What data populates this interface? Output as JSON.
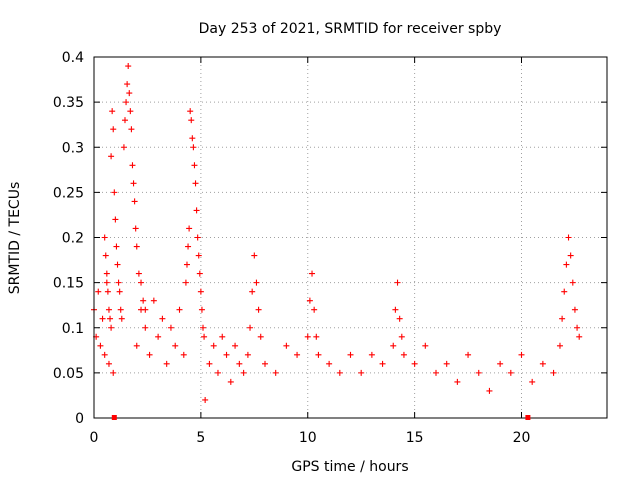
{
  "chart_data": {
    "type": "scatter",
    "title": "Day 253 of 2021, SRMTID for receiver spby",
    "xlabel": "GPS time / hours",
    "ylabel": "SRMTID / TECUs",
    "xlim": [
      0,
      24
    ],
    "ylim": [
      0,
      0.4
    ],
    "xticks": [
      0,
      5,
      10,
      15,
      20
    ],
    "yticks": [
      0,
      0.05,
      0.1,
      0.15,
      0.2,
      0.25,
      0.3,
      0.35,
      0.4
    ],
    "xtick_labels": [
      "0",
      "5",
      "10",
      "15",
      "20"
    ],
    "ytick_labels": [
      "0",
      "0.05",
      "0.1",
      "0.15",
      "0.2",
      "0.25",
      "0.3",
      "0.35",
      "0.4"
    ],
    "grid": true,
    "marker": "+",
    "color": "#ff0000",
    "gap_markers_x": [
      0.95,
      20.3
    ],
    "series": [
      {
        "name": "SRMTID",
        "segments": [
          {
            "x": [
              0.0,
              0.1,
              0.2,
              0.3,
              0.4,
              0.5,
              0.6,
              0.7,
              0.8,
              0.9
            ],
            "y": [
              0.12,
              0.09,
              0.14,
              0.08,
              0.11,
              0.07,
              0.15,
              0.06,
              0.1,
              0.05
            ]
          },
          {
            "x": [
              0.5,
              0.55,
              0.6,
              0.65,
              0.7,
              0.75,
              0.8,
              0.85,
              0.9,
              0.95,
              1.0,
              1.05,
              1.1,
              1.15,
              1.2,
              1.25,
              1.3
            ],
            "y": [
              0.2,
              0.18,
              0.16,
              0.14,
              0.12,
              0.11,
              0.29,
              0.34,
              0.32,
              0.25,
              0.22,
              0.19,
              0.17,
              0.15,
              0.14,
              0.12,
              0.11
            ]
          },
          {
            "x": [
              1.4,
              1.45,
              1.5,
              1.55,
              1.6,
              1.65,
              1.7,
              1.75,
              1.8,
              1.85,
              1.9,
              1.95,
              2.0,
              2.1,
              2.2,
              2.3,
              2.4
            ],
            "y": [
              0.3,
              0.33,
              0.35,
              0.37,
              0.39,
              0.36,
              0.34,
              0.32,
              0.28,
              0.26,
              0.24,
              0.21,
              0.19,
              0.16,
              0.15,
              0.13,
              0.12
            ]
          },
          {
            "x": [
              2.0,
              2.2,
              2.4,
              2.6,
              2.8,
              3.0,
              3.2,
              3.4,
              3.6,
              3.8,
              4.0,
              4.2
            ],
            "y": [
              0.08,
              0.12,
              0.1,
              0.07,
              0.13,
              0.09,
              0.11,
              0.06,
              0.1,
              0.08,
              0.12,
              0.07
            ]
          },
          {
            "x": [
              4.3,
              4.35,
              4.4,
              4.45,
              4.5,
              4.55,
              4.6,
              4.65,
              4.7,
              4.75,
              4.8,
              4.85,
              4.9,
              4.95,
              5.0,
              5.05,
              5.1,
              5.15
            ],
            "y": [
              0.15,
              0.17,
              0.19,
              0.21,
              0.34,
              0.33,
              0.31,
              0.3,
              0.28,
              0.26,
              0.23,
              0.2,
              0.18,
              0.16,
              0.14,
              0.12,
              0.1,
              0.09
            ]
          },
          {
            "x": [
              5.2,
              5.4,
              5.6,
              5.8,
              6.0,
              6.2,
              6.4,
              6.6,
              6.8,
              7.0
            ],
            "y": [
              0.02,
              0.06,
              0.08,
              0.05,
              0.09,
              0.07,
              0.04,
              0.08,
              0.06,
              0.05
            ]
          },
          {
            "x": [
              7.2,
              7.3,
              7.4,
              7.5,
              7.6,
              7.7,
              7.8
            ],
            "y": [
              0.07,
              0.1,
              0.14,
              0.18,
              0.15,
              0.12,
              0.09
            ]
          },
          {
            "x": [
              8.0,
              8.5,
              9.0,
              9.5,
              10.0,
              10.1,
              10.2,
              10.3,
              10.4,
              10.5,
              11.0,
              11.5,
              12.0
            ],
            "y": [
              0.06,
              0.05,
              0.08,
              0.07,
              0.09,
              0.13,
              0.16,
              0.12,
              0.09,
              0.07,
              0.06,
              0.05,
              0.07
            ]
          },
          {
            "x": [
              12.5,
              13.0,
              13.5,
              14.0,
              14.1,
              14.2,
              14.3,
              14.4,
              14.5,
              15.0,
              15.5,
              16.0
            ],
            "y": [
              0.05,
              0.07,
              0.06,
              0.08,
              0.12,
              0.15,
              0.11,
              0.09,
              0.07,
              0.06,
              0.08,
              0.05
            ]
          },
          {
            "x": [
              16.5,
              17.0,
              17.5,
              18.0,
              18.5,
              19.0,
              19.5,
              20.0,
              20.5,
              21.0,
              21.5
            ],
            "y": [
              0.06,
              0.04,
              0.07,
              0.05,
              0.03,
              0.06,
              0.05,
              0.07,
              0.04,
              0.06,
              0.05
            ]
          },
          {
            "x": [
              21.8,
              21.9,
              22.0,
              22.1,
              22.2,
              22.3,
              22.4,
              22.5,
              22.6,
              22.7
            ],
            "y": [
              0.08,
              0.11,
              0.14,
              0.17,
              0.2,
              0.18,
              0.15,
              0.12,
              0.1,
              0.09
            ]
          }
        ]
      }
    ]
  }
}
